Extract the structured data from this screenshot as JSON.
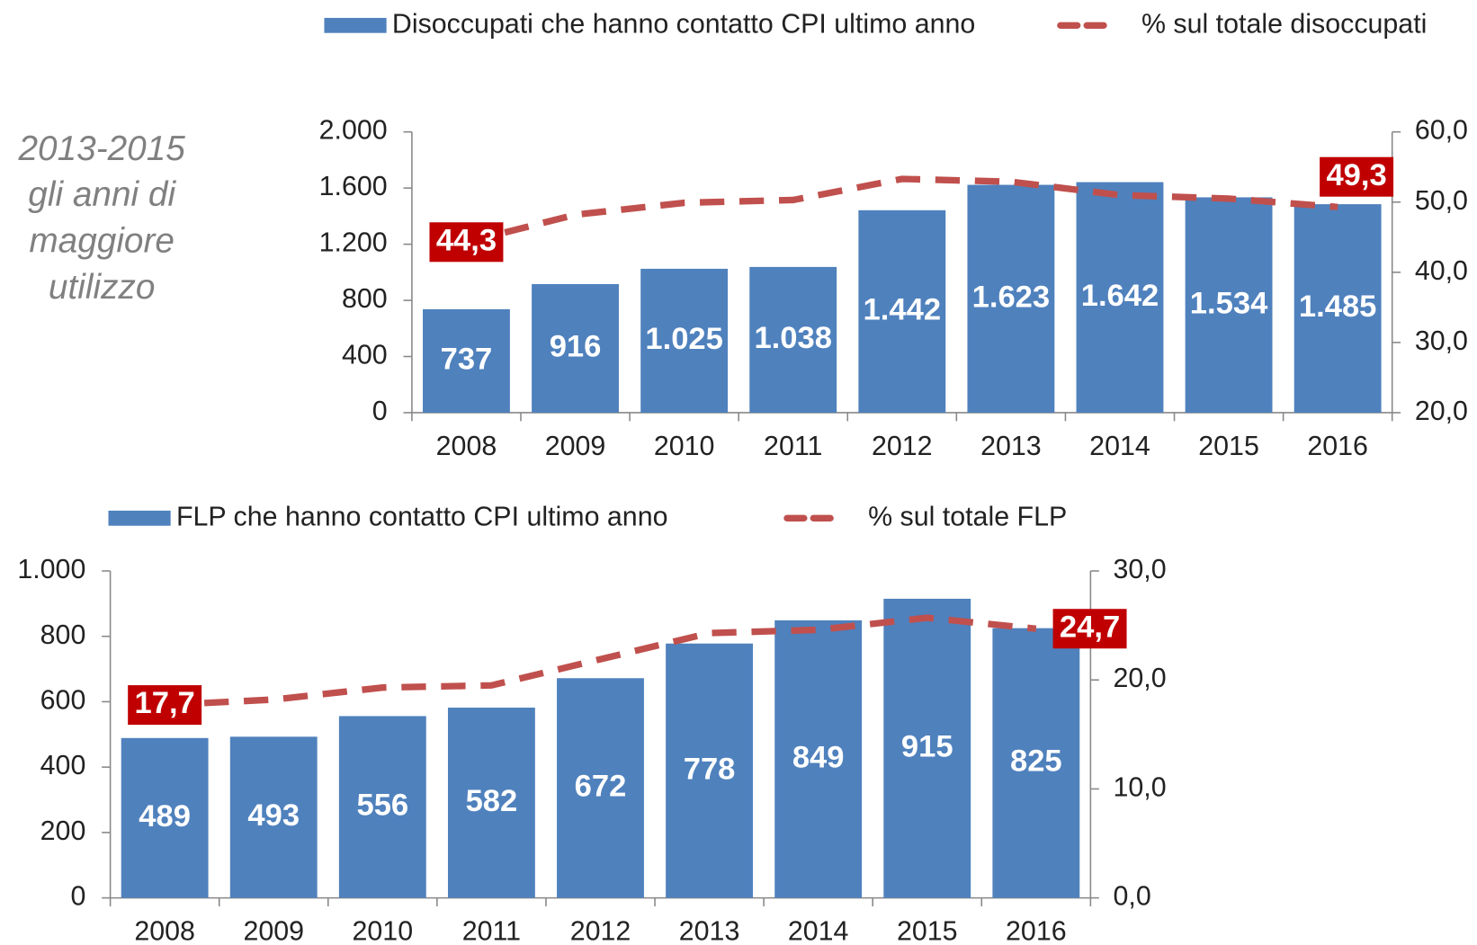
{
  "chart_data": [
    {
      "type": "bar",
      "annotation": [
        "2013-2015",
        "gli anni di",
        "maggiore",
        "utilizzo"
      ],
      "categories": [
        "2008",
        "2009",
        "2010",
        "2011",
        "2012",
        "2013",
        "2014",
        "2015",
        "2016"
      ],
      "series": [
        {
          "name": "Disoccupati che hanno contatto CPI ultimo anno",
          "type": "bar",
          "color": "#4f81bd",
          "values": [
            737,
            916,
            1025,
            1038,
            1442,
            1623,
            1642,
            1534,
            1485
          ],
          "value_labels": [
            "737",
            "916",
            "1.025",
            "1.038",
            "1.442",
            "1.623",
            "1.642",
            "1.534",
            "1.485"
          ]
        },
        {
          "name": "% sul totale disoccupati",
          "type": "line",
          "axis": "y2",
          "color": "#c0504d",
          "values": [
            44.3,
            48.2,
            49.9,
            50.3,
            53.3,
            52.9,
            51.0,
            50.5,
            49.3
          ],
          "value_labels": [
            "44,3",
            null,
            null,
            null,
            null,
            null,
            null,
            null,
            "49,3"
          ]
        }
      ],
      "ylim": [
        0,
        2000
      ],
      "yticks": [
        0,
        400,
        800,
        {
          "value": 1200,
          "label": "1.200"
        },
        {
          "value": 1600,
          "label": "1.600"
        },
        {
          "value": 2000,
          "label": "2.000"
        }
      ],
      "y2lim": [
        20,
        60
      ],
      "y2ticks": [
        {
          "value": 20,
          "label": "20,0"
        },
        {
          "value": 30,
          "label": "30,0"
        },
        {
          "value": 40,
          "label": "40,0"
        },
        {
          "value": 50,
          "label": "50,0"
        },
        {
          "value": 60,
          "label": "60,0"
        }
      ]
    },
    {
      "type": "bar",
      "categories": [
        "2008",
        "2009",
        "2010",
        "2011",
        "2012",
        "2013",
        "2014",
        "2015",
        "2016"
      ],
      "series": [
        {
          "name": "FLP che hanno contatto CPI ultimo anno",
          "type": "bar",
          "color": "#4f81bd",
          "values": [
            489,
            493,
            556,
            582,
            672,
            778,
            849,
            915,
            825
          ]
        },
        {
          "name": "% sul totale FLP",
          "type": "line",
          "axis": "y2",
          "color": "#c0504d",
          "values": [
            17.7,
            18.2,
            19.3,
            19.5,
            21.9,
            24.3,
            24.6,
            25.7,
            24.7
          ],
          "value_labels": [
            "17,7",
            null,
            null,
            null,
            null,
            null,
            null,
            null,
            "24,7"
          ]
        }
      ],
      "ylim": [
        0,
        1000
      ],
      "yticks": [
        0,
        200,
        400,
        600,
        800,
        {
          "value": 1000,
          "label": "1.000"
        }
      ],
      "y2lim": [
        0,
        30
      ],
      "y2ticks": [
        {
          "value": 0,
          "label": "0,0"
        },
        {
          "value": 10,
          "label": "10,0"
        },
        {
          "value": 20,
          "label": "20,0"
        },
        {
          "value": 30,
          "label": "30,0"
        }
      ]
    }
  ]
}
